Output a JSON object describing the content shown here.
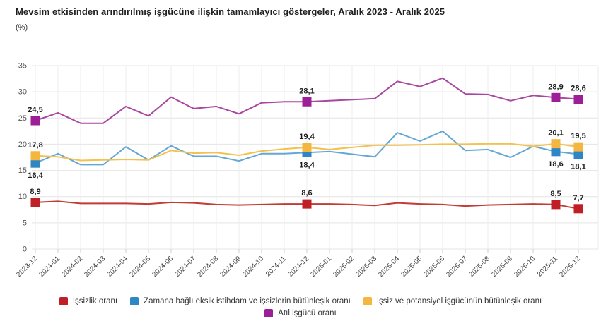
{
  "title": "Mevsim etkisinden arındırılmış işgücüne ilişkin tamamlayıcı göstergeler, Aralık 2023 - Aralık 2025",
  "y_axis_unit": "(%)",
  "chart_data": {
    "type": "line",
    "title": "Mevsim etkisinden arındırılmış işgücüne ilişkin tamamlayıcı göstergeler, Aralık 2023 - Aralık 2025",
    "ylabel": "(%)",
    "ylim": [
      0,
      35
    ],
    "ytick_step": 5,
    "grid": true,
    "legend_position": "bottom",
    "x_tick_rotation": -45,
    "categories": [
      "2023-12",
      "2024-01",
      "2024-02",
      "2024-03",
      "2024-04",
      "2024-05",
      "2024-06",
      "2024-07",
      "2024-08",
      "2024-09",
      "2024-10",
      "2024-11",
      "2024-12",
      "2025-01",
      "2025-02",
      "2025-03",
      "2025-04",
      "2025-05",
      "2025-06",
      "2025-07",
      "2025-08",
      "2025-09",
      "2025-10",
      "2025-11",
      "2025-12"
    ],
    "labeled_indices": [
      0,
      12,
      23,
      24
    ],
    "labeled_categories": [
      "2023-12",
      "2024-12",
      "2025-11",
      "2025-12"
    ],
    "series": [
      {
        "name": "İşsizlik oranı",
        "color": "#be2025",
        "line_color": "#c23b34",
        "label_side": "above",
        "values": [
          8.9,
          9.1,
          8.7,
          8.7,
          8.7,
          8.6,
          8.9,
          8.8,
          8.5,
          8.4,
          8.5,
          8.6,
          8.6,
          8.6,
          8.5,
          8.3,
          8.8,
          8.6,
          8.5,
          8.2,
          8.4,
          8.5,
          8.6,
          8.5,
          7.7
        ],
        "point_labels": [
          "8,9",
          "8,6",
          "8,5",
          "7,7"
        ]
      },
      {
        "name": "Zamana bağlı eksik istihdam ve işsizlerin bütünleşik oranı",
        "color": "#2e86c6",
        "line_color": "#64a7d6",
        "label_side": "below",
        "values": [
          16.4,
          18.2,
          16.1,
          16.1,
          19.5,
          17.0,
          19.7,
          17.7,
          17.7,
          16.8,
          18.2,
          18.2,
          18.4,
          18.6,
          18.1,
          17.6,
          22.2,
          20.6,
          22.5,
          18.8,
          19.0,
          17.5,
          19.6,
          18.6,
          18.1
        ],
        "point_labels": [
          "16,4",
          "18,4",
          "18,6",
          "18,1"
        ]
      },
      {
        "name": "İşsiz ve potansiyel işgücünün bütünleşik oranı",
        "color": "#f3b63e",
        "line_color": "#f5c04c",
        "label_side": "above",
        "values": [
          17.8,
          17.6,
          16.9,
          17.0,
          17.1,
          17.0,
          18.8,
          18.3,
          18.4,
          17.9,
          18.7,
          19.1,
          19.4,
          19.0,
          19.4,
          19.8,
          19.8,
          19.9,
          20.0,
          20.0,
          20.1,
          20.1,
          19.6,
          20.1,
          19.5
        ],
        "point_labels": [
          "17,8",
          "19,4",
          "20,1",
          "19,5"
        ]
      },
      {
        "name": "Atıl işgücü oranı",
        "color": "#9c1f97",
        "line_color": "#a9479f",
        "label_side": "above",
        "values": [
          24.5,
          26.0,
          24.0,
          24.0,
          27.2,
          25.4,
          29.0,
          26.8,
          27.2,
          25.8,
          27.9,
          28.1,
          28.1,
          28.3,
          28.5,
          28.7,
          32.0,
          31.0,
          32.6,
          29.6,
          29.5,
          28.3,
          29.3,
          28.9,
          28.6
        ],
        "point_labels": [
          "24,5",
          "28,1",
          "28,9",
          "28,6"
        ]
      }
    ]
  }
}
